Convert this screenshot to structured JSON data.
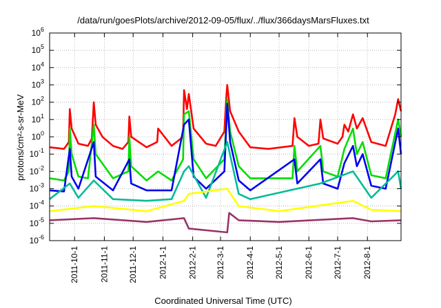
{
  "chart_data": {
    "type": "line",
    "title": "/data/run/goesPlots/archive/2012-09-05/flux/../flux/366daysMarsFluxes.txt",
    "xlabel": "Coordinated Universal Time (UTC)",
    "ylabel": "protons/cm²-s-sr-MeV",
    "yscale": "log",
    "ylim": [
      1e-06,
      1000000.0
    ],
    "xlim": [
      "2011-09-05",
      "2012-09-05"
    ],
    "grid": true,
    "legend": "none",
    "y_ticks": [
      {
        "value": 1e-06,
        "base": "10",
        "exp": "-6"
      },
      {
        "value": 1e-05,
        "base": "10",
        "exp": "-5"
      },
      {
        "value": 0.0001,
        "base": "10",
        "exp": "-4"
      },
      {
        "value": 0.001,
        "base": "10",
        "exp": "-3"
      },
      {
        "value": 0.01,
        "base": "10",
        "exp": "-2"
      },
      {
        "value": 0.1,
        "base": "10",
        "exp": "-1"
      },
      {
        "value": 1.0,
        "base": "10",
        "exp": "0"
      },
      {
        "value": 10.0,
        "base": "10",
        "exp": "1"
      },
      {
        "value": 100.0,
        "base": "10",
        "exp": "2"
      },
      {
        "value": 1000.0,
        "base": "10",
        "exp": "3"
      },
      {
        "value": 10000.0,
        "base": "10",
        "exp": "4"
      },
      {
        "value": 100000.0,
        "base": "10",
        "exp": "5"
      },
      {
        "value": 1000000.0,
        "base": "10",
        "exp": "6"
      }
    ],
    "x_ticks": [
      {
        "date": "2011-10-01",
        "label": "2011-10-1"
      },
      {
        "date": "2011-11-01",
        "label": "2011-11-1"
      },
      {
        "date": "2011-12-01",
        "label": "2011-12-1"
      },
      {
        "date": "2012-01-01",
        "label": "2012-1-1"
      },
      {
        "date": "2012-02-01",
        "label": "2012-2-1"
      },
      {
        "date": "2012-03-01",
        "label": "2012-3-1"
      },
      {
        "date": "2012-04-01",
        "label": "2012-4-1"
      },
      {
        "date": "2012-05-01",
        "label": "2012-5-1"
      },
      {
        "date": "2012-06-01",
        "label": "2012-6-1"
      },
      {
        "date": "2012-07-01",
        "label": "2012-7-1"
      },
      {
        "date": "2012-08-01",
        "label": "2012-8-1"
      }
    ],
    "series": [
      {
        "color": "#ff0000",
        "values": [
          [
            "2011-09-05",
            0.25
          ],
          [
            "2011-09-20",
            0.2
          ],
          [
            "2011-09-25",
            0.5
          ],
          [
            "2011-09-26",
            40
          ],
          [
            "2011-09-28",
            3
          ],
          [
            "2011-10-05",
            0.4
          ],
          [
            "2011-10-15",
            0.3
          ],
          [
            "2011-10-19",
            0.8
          ],
          [
            "2011-10-21",
            100
          ],
          [
            "2011-10-23",
            5
          ],
          [
            "2011-10-30",
            1
          ],
          [
            "2011-11-10",
            0.3
          ],
          [
            "2011-11-20",
            0.2
          ],
          [
            "2011-11-26",
            0.5
          ],
          [
            "2011-11-27",
            15
          ],
          [
            "2011-11-29",
            1
          ],
          [
            "2011-12-15",
            0.25
          ],
          [
            "2011-12-26",
            0.5
          ],
          [
            "2011-12-27",
            3
          ],
          [
            "2012-01-10",
            0.3
          ],
          [
            "2012-01-22",
            1
          ],
          [
            "2012-01-23",
            500
          ],
          [
            "2012-01-26",
            40
          ],
          [
            "2012-01-28",
            300
          ],
          [
            "2012-02-02",
            3
          ],
          [
            "2012-02-15",
            0.4
          ],
          [
            "2012-02-25",
            0.3
          ],
          [
            "2012-03-05",
            2
          ],
          [
            "2012-03-07",
            200
          ],
          [
            "2012-03-08",
            1000
          ],
          [
            "2012-03-11",
            30
          ],
          [
            "2012-03-20",
            2
          ],
          [
            "2012-04-01",
            0.25
          ],
          [
            "2012-04-20",
            0.2
          ],
          [
            "2012-05-15",
            0.3
          ],
          [
            "2012-05-17",
            12
          ],
          [
            "2012-05-20",
            1
          ],
          [
            "2012-06-01",
            0.3
          ],
          [
            "2012-06-11",
            0.4
          ],
          [
            "2012-06-13",
            10
          ],
          [
            "2012-06-16",
            0.8
          ],
          [
            "2012-07-01",
            0.4
          ],
          [
            "2012-07-06",
            1
          ],
          [
            "2012-07-08",
            5
          ],
          [
            "2012-07-12",
            2
          ],
          [
            "2012-07-17",
            20
          ],
          [
            "2012-07-21",
            3
          ],
          [
            "2012-07-27",
            12
          ],
          [
            "2012-08-05",
            0.5
          ],
          [
            "2012-08-20",
            0.3
          ],
          [
            "2012-08-30",
            20
          ],
          [
            "2012-09-02",
            150
          ],
          [
            "2012-09-05",
            30
          ]
        ]
      },
      {
        "color": "#00dd00",
        "values": [
          [
            "2011-09-05",
            0.004
          ],
          [
            "2011-09-20",
            0.003
          ],
          [
            "2011-09-25",
            0.01
          ],
          [
            "2011-09-26",
            3
          ],
          [
            "2011-09-28",
            0.1
          ],
          [
            "2011-10-05",
            0.005
          ],
          [
            "2011-10-15",
            0.004
          ],
          [
            "2011-10-21",
            5
          ],
          [
            "2011-10-23",
            0.1
          ],
          [
            "2011-11-10",
            0.004
          ],
          [
            "2011-11-26",
            0.01
          ],
          [
            "2011-11-27",
            1
          ],
          [
            "2011-11-29",
            0.02
          ],
          [
            "2011-12-15",
            0.003
          ],
          [
            "2011-12-27",
            0.01
          ],
          [
            "2012-01-10",
            0.003
          ],
          [
            "2012-01-22",
            0.05
          ],
          [
            "2012-01-23",
            20
          ],
          [
            "2012-01-28",
            30
          ],
          [
            "2012-02-02",
            0.05
          ],
          [
            "2012-02-15",
            0.004
          ],
          [
            "2012-03-05",
            0.05
          ],
          [
            "2012-03-08",
            150
          ],
          [
            "2012-03-11",
            2
          ],
          [
            "2012-03-20",
            0.02
          ],
          [
            "2012-04-01",
            0.004
          ],
          [
            "2012-05-15",
            0.004
          ],
          [
            "2012-05-17",
            0.3
          ],
          [
            "2012-05-20",
            0.01
          ],
          [
            "2012-06-13",
            0.3
          ],
          [
            "2012-06-16",
            0.01
          ],
          [
            "2012-07-01",
            0.005
          ],
          [
            "2012-07-08",
            0.2
          ],
          [
            "2012-07-17",
            3
          ],
          [
            "2012-07-21",
            0.1
          ],
          [
            "2012-07-27",
            0.5
          ],
          [
            "2012-08-05",
            0.006
          ],
          [
            "2012-08-20",
            0.004
          ],
          [
            "2012-09-02",
            10
          ],
          [
            "2012-09-05",
            1
          ]
        ]
      },
      {
        "color": "#0000ee",
        "values": [
          [
            "2011-09-05",
            0.0008
          ],
          [
            "2011-09-20",
            0.0007
          ],
          [
            "2011-09-26",
            0.2
          ],
          [
            "2011-09-28",
            0.005
          ],
          [
            "2011-10-05",
            0.001
          ],
          [
            "2011-10-21",
            0.5
          ],
          [
            "2011-10-23",
            0.005
          ],
          [
            "2011-11-10",
            0.0008
          ],
          [
            "2011-11-27",
            0.05
          ],
          [
            "2011-11-29",
            0.002
          ],
          [
            "2011-12-15",
            0.0008
          ],
          [
            "2012-01-10",
            0.0008
          ],
          [
            "2012-01-23",
            5
          ],
          [
            "2012-01-28",
            10
          ],
          [
            "2012-02-02",
            0.005
          ],
          [
            "2012-02-15",
            0.001
          ],
          [
            "2012-03-05",
            0.01
          ],
          [
            "2012-03-08",
            80
          ],
          [
            "2012-03-11",
            0.5
          ],
          [
            "2012-03-20",
            0.003
          ],
          [
            "2012-04-01",
            0.0008
          ],
          [
            "2012-05-17",
            0.05
          ],
          [
            "2012-05-20",
            0.002
          ],
          [
            "2012-06-13",
            0.05
          ],
          [
            "2012-06-16",
            0.002
          ],
          [
            "2012-07-01",
            0.001
          ],
          [
            "2012-07-08",
            0.03
          ],
          [
            "2012-07-17",
            0.3
          ],
          [
            "2012-07-21",
            0.02
          ],
          [
            "2012-07-27",
            0.1
          ],
          [
            "2012-08-05",
            0.0015
          ],
          [
            "2012-08-20",
            0.001
          ],
          [
            "2012-09-02",
            3
          ],
          [
            "2012-09-05",
            0.1
          ]
        ]
      },
      {
        "color": "#00bb99",
        "values": [
          [
            "2011-09-05",
            0.00025
          ],
          [
            "2011-09-26",
            0.002
          ],
          [
            "2011-10-05",
            0.0003
          ],
          [
            "2011-10-21",
            0.003
          ],
          [
            "2011-11-10",
            0.00025
          ],
          [
            "2011-12-15",
            0.0002
          ],
          [
            "2012-01-10",
            0.00025
          ],
          [
            "2012-01-23",
            0.01
          ],
          [
            "2012-01-28",
            0.02
          ],
          [
            "2012-02-15",
            0.0003
          ],
          [
            "2012-03-08",
            0.5
          ],
          [
            "2012-03-20",
            0.0005
          ],
          [
            "2012-04-01",
            0.00025
          ],
          [
            "2012-06-13",
            0.002
          ],
          [
            "2012-07-17",
            0.01
          ],
          [
            "2012-08-05",
            0.0003
          ],
          [
            "2012-09-02",
            0.01
          ],
          [
            "2012-09-05",
            0.001
          ]
        ]
      },
      {
        "color": "#ffff00",
        "values": [
          [
            "2011-09-05",
            5e-05
          ],
          [
            "2011-10-21",
            0.0001
          ],
          [
            "2011-12-15",
            5e-05
          ],
          [
            "2012-01-23",
            0.0002
          ],
          [
            "2012-01-28",
            0.0005
          ],
          [
            "2012-03-08",
            0.001
          ],
          [
            "2012-03-20",
            0.0001
          ],
          [
            "2012-05-01",
            5e-05
          ],
          [
            "2012-07-17",
            0.0002
          ],
          [
            "2012-08-05",
            6e-05
          ],
          [
            "2012-09-05",
            5e-05
          ]
        ]
      },
      {
        "color": "#993366",
        "values": [
          [
            "2011-09-05",
            1.5e-05
          ],
          [
            "2011-10-21",
            2e-05
          ],
          [
            "2011-12-15",
            1.2e-05
          ],
          [
            "2012-01-23",
            2e-05
          ],
          [
            "2012-01-28",
            5e-06
          ],
          [
            "2012-03-08",
            3e-06
          ],
          [
            "2012-03-10",
            4e-05
          ],
          [
            "2012-03-20",
            1.5e-05
          ],
          [
            "2012-05-01",
            1.2e-05
          ],
          [
            "2012-07-17",
            2e-05
          ],
          [
            "2012-08-05",
            1.3e-05
          ],
          [
            "2012-09-05",
            1.5e-05
          ]
        ]
      }
    ]
  }
}
